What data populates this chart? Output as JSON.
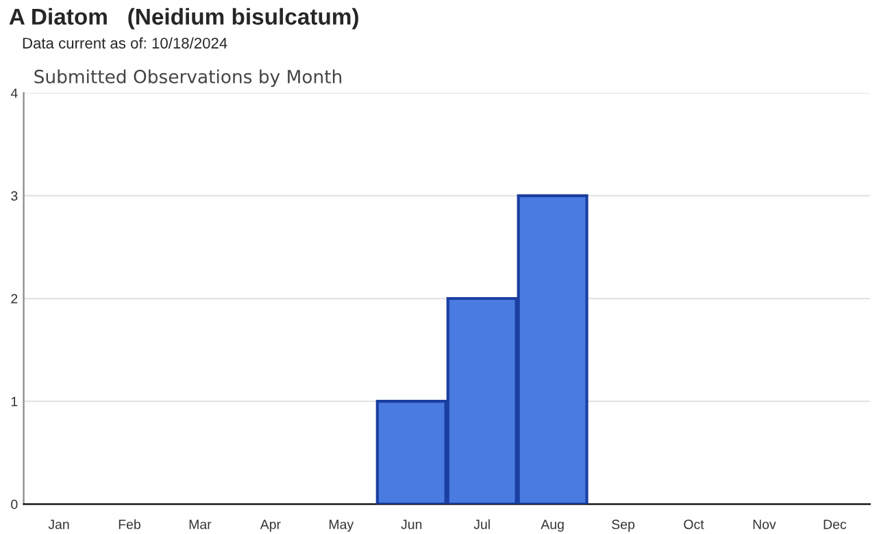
{
  "chart_data": {
    "type": "bar",
    "title": "A Diatom   (Neidium bisulcatum)",
    "subtitle": "Data current as of: 10/18/2024",
    "annotations": [
      "Submitted Observations by Month"
    ],
    "categories": [
      "Jan",
      "Feb",
      "Mar",
      "Apr",
      "May",
      "Jun",
      "Jul",
      "Aug",
      "Sep",
      "Oct",
      "Nov",
      "Dec"
    ],
    "values": [
      0,
      0,
      0,
      0,
      0,
      1,
      2,
      3,
      0,
      0,
      0,
      0
    ],
    "color": "#4a7be0",
    "ylim": [
      0,
      4
    ],
    "yticks": [
      0,
      1,
      2,
      3,
      4
    ],
    "grid": "y"
  }
}
